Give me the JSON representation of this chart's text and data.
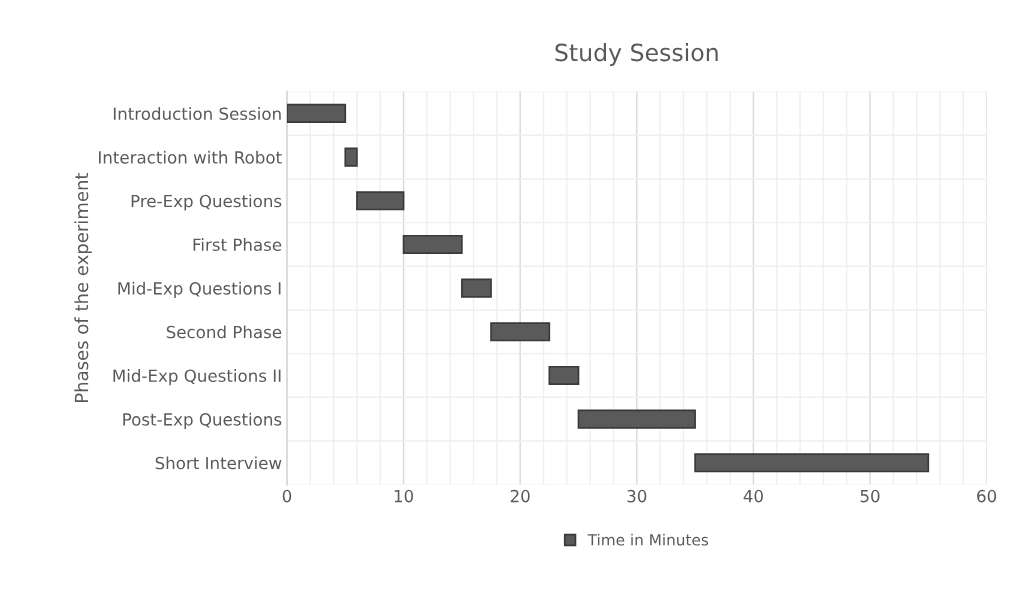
{
  "chart_data": {
    "type": "bar",
    "orientation": "horizontal",
    "title": "Study Session",
    "ylabel": "Phases of the experiment",
    "categories": [
      "Introduction Session",
      "Interaction with Robot",
      "Pre-Exp Questions",
      "First Phase",
      "Mid-Exp Questions I",
      "Second Phase",
      "Mid-Exp Questions II",
      "Post-Exp Questions",
      "Short Interview"
    ],
    "series": [
      {
        "name": "Time in Minutes",
        "color": "#5a5a5a",
        "values": [
          5,
          1,
          4,
          5,
          2.5,
          5,
          2.5,
          10,
          20
        ],
        "base": [
          0,
          5,
          6,
          10,
          15,
          17.5,
          22.5,
          25,
          35
        ]
      }
    ],
    "xlim": [
      0,
      60
    ],
    "xticks": [
      0,
      10,
      20,
      30,
      40,
      50,
      60
    ],
    "grid": true,
    "legend": "bottom"
  }
}
